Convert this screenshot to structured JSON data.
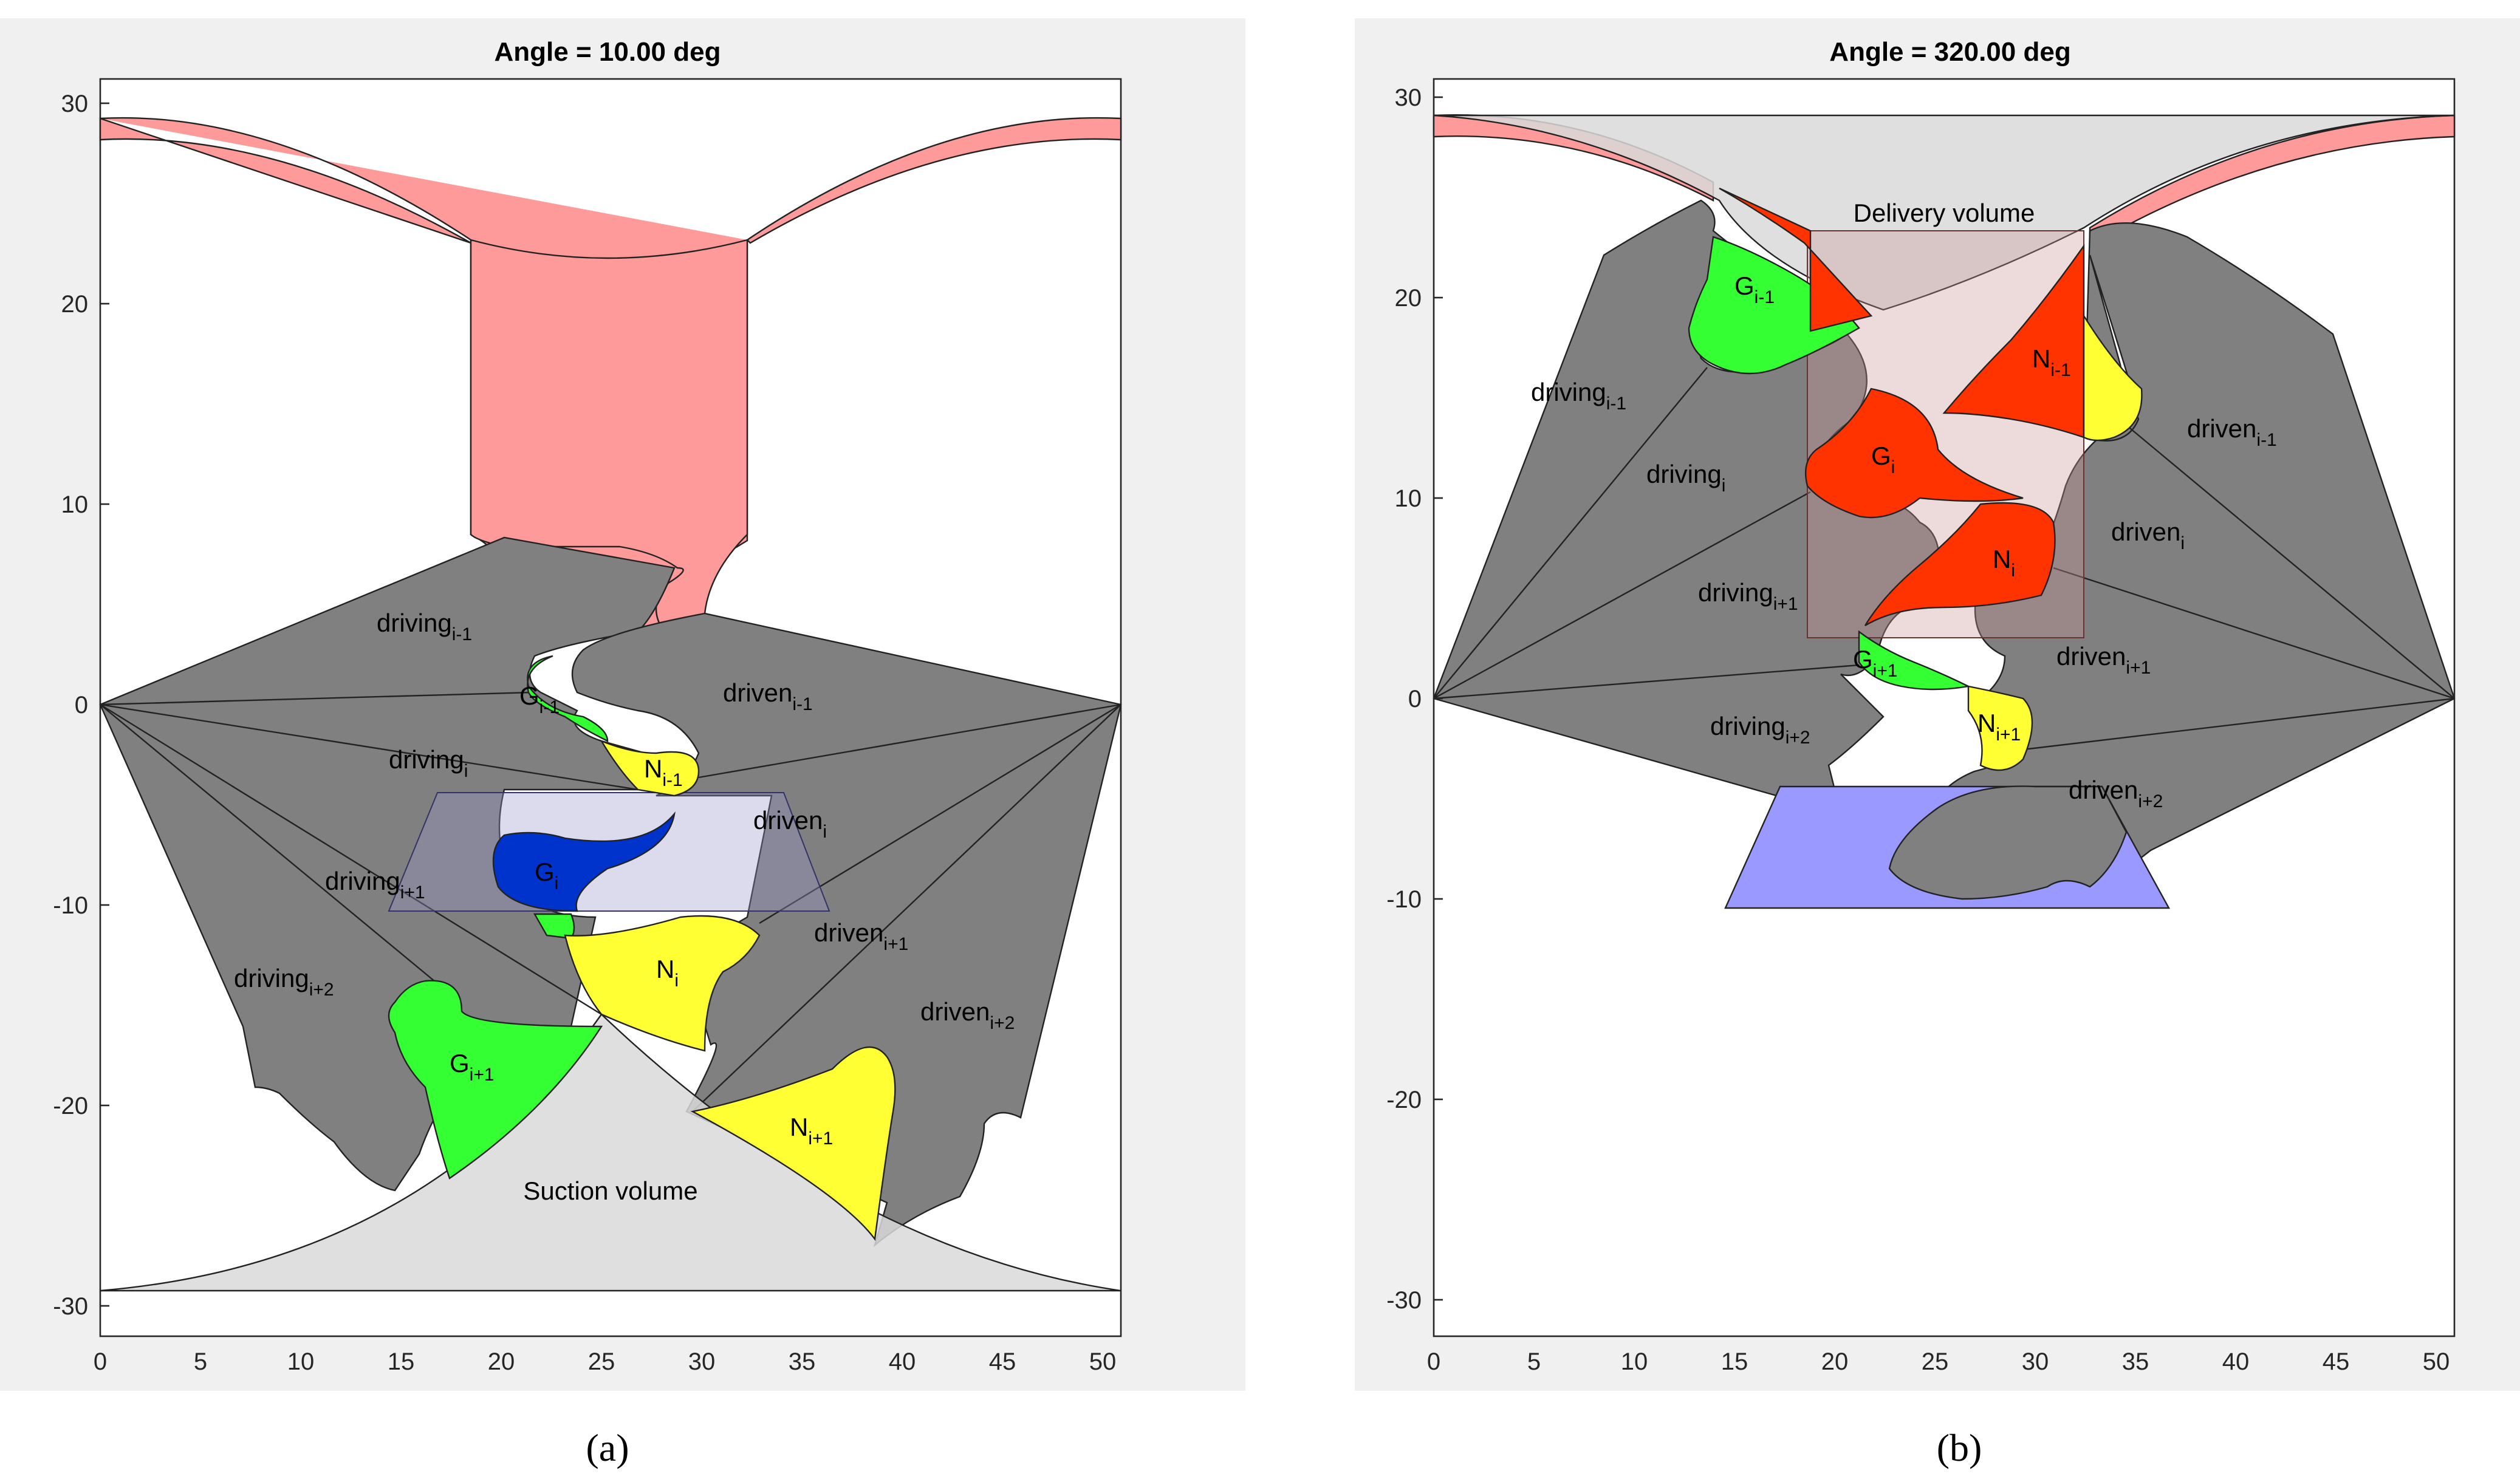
{
  "figure": {
    "panel_a": {
      "title": "Angle = 10.00 deg",
      "caption": "(a)",
      "x_ticks": [
        "0",
        "5",
        "10",
        "15",
        "20",
        "25",
        "30",
        "35",
        "40",
        "45",
        "50"
      ],
      "y_ticks": [
        "30",
        "20",
        "10",
        "0",
        "-10",
        "-20",
        "-30"
      ],
      "volume_label": "Suction volume",
      "driving_labels": [
        {
          "base": "driving",
          "sub": "i-1"
        },
        {
          "base": "driving",
          "sub": "i"
        },
        {
          "base": "driving",
          "sub": "i+1"
        },
        {
          "base": "driving",
          "sub": "i+2"
        }
      ],
      "driven_labels": [
        {
          "base": "driven",
          "sub": "i-1"
        },
        {
          "base": "driven",
          "sub": "i"
        },
        {
          "base": "driven",
          "sub": "i+1"
        },
        {
          "base": "driven",
          "sub": "i+2"
        }
      ],
      "tooth_labels": [
        {
          "base": "G",
          "sub": "i-1"
        },
        {
          "base": "N",
          "sub": "i-1"
        },
        {
          "base": "G",
          "sub": "i"
        },
        {
          "base": "N",
          "sub": "i"
        },
        {
          "base": "G",
          "sub": "i+1"
        },
        {
          "base": "N",
          "sub": "i+1"
        }
      ]
    },
    "panel_b": {
      "title": "Angle = 320.00 deg",
      "caption": "(b)",
      "x_ticks": [
        "0",
        "5",
        "10",
        "15",
        "20",
        "25",
        "30",
        "35",
        "40",
        "45",
        "50"
      ],
      "y_ticks": [
        "30",
        "20",
        "10",
        "0",
        "-10",
        "-20",
        "-30"
      ],
      "volume_label": "Delivery volume",
      "driving_labels": [
        {
          "base": "driving",
          "sub": "i-1"
        },
        {
          "base": "driving",
          "sub": "i"
        },
        {
          "base": "driving",
          "sub": "i+1"
        },
        {
          "base": "driving",
          "sub": "i+2"
        }
      ],
      "driven_labels": [
        {
          "base": "driven",
          "sub": "i-1"
        },
        {
          "base": "driven",
          "sub": "i"
        },
        {
          "base": "driven",
          "sub": "i+1"
        },
        {
          "base": "driven",
          "sub": "i+2"
        }
      ],
      "tooth_labels": [
        {
          "base": "G",
          "sub": "i-1"
        },
        {
          "base": "N",
          "sub": "i-1"
        },
        {
          "base": "G",
          "sub": "i"
        },
        {
          "base": "N",
          "sub": "i"
        },
        {
          "base": "G",
          "sub": "i+1"
        },
        {
          "base": "N",
          "sub": "i+1"
        }
      ]
    },
    "colors": {
      "casing": "#ff9a9a",
      "gear": "#808080",
      "tooth_green": "#33ff33",
      "tooth_yellow": "#ffff33",
      "tooth_blue": "#0033cc",
      "tooth_red": "#ff3300",
      "port_blue": "#9999ff",
      "volume": "#d9d9d9"
    }
  }
}
